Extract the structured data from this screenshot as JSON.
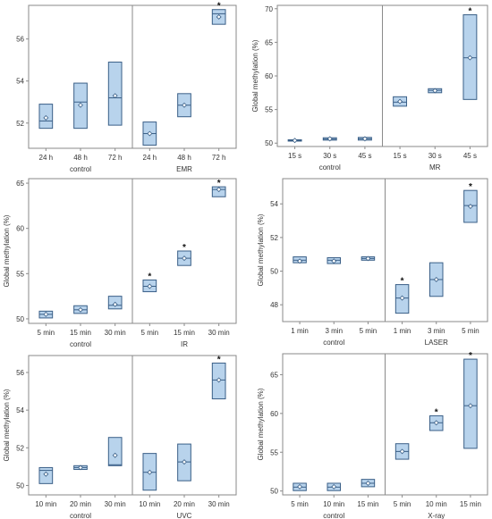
{
  "figure": {
    "background": "#ffffff",
    "box_fill": "#b8d3ec",
    "box_stroke": "#3a5f87",
    "frame_stroke": "#8a8a8a"
  },
  "chart_data": [
    {
      "type": "box",
      "ylabel": "",
      "ylim": [
        50.8,
        57.6
      ],
      "yticks": [
        52,
        54,
        56
      ],
      "categories": [
        "24 h",
        "48 h",
        "72 h",
        "24 h",
        "48 h",
        "72 h"
      ],
      "groups": [
        {
          "label": "control",
          "count": 3
        },
        {
          "label": "EMR",
          "count": 3
        }
      ],
      "boxes": [
        {
          "q1": 51.75,
          "median": 52.1,
          "q3": 52.9,
          "mean": 52.25,
          "sig": false
        },
        {
          "q1": 51.75,
          "median": 53.0,
          "q3": 53.9,
          "mean": 52.85,
          "sig": false
        },
        {
          "q1": 51.9,
          "median": 53.2,
          "q3": 54.9,
          "mean": 53.3,
          "sig": false
        },
        {
          "q1": 50.95,
          "median": 51.5,
          "q3": 52.05,
          "mean": 51.5,
          "sig": false
        },
        {
          "q1": 52.3,
          "median": 52.85,
          "q3": 53.4,
          "mean": 52.85,
          "sig": false
        },
        {
          "q1": 56.7,
          "median": 57.2,
          "q3": 57.4,
          "mean": 57.05,
          "sig": true
        }
      ]
    },
    {
      "type": "box",
      "ylabel": "Global methylation (%)",
      "ylim": [
        49.5,
        70.5
      ],
      "yticks": [
        50,
        55,
        60,
        65,
        70
      ],
      "categories": [
        "15 s",
        "30 s",
        "45 s",
        "15 s",
        "30 s",
        "45 s"
      ],
      "groups": [
        {
          "label": "control",
          "count": 3
        },
        {
          "label": "MR",
          "count": 3
        }
      ],
      "boxes": [
        {
          "q1": 50.3,
          "median": 50.4,
          "q3": 50.5,
          "mean": 50.4,
          "sig": false
        },
        {
          "q1": 50.45,
          "median": 50.6,
          "q3": 50.8,
          "mean": 50.65,
          "sig": false
        },
        {
          "q1": 50.45,
          "median": 50.65,
          "q3": 50.85,
          "mean": 50.65,
          "sig": false
        },
        {
          "q1": 55.5,
          "median": 56.1,
          "q3": 56.9,
          "mean": 56.2,
          "sig": false
        },
        {
          "q1": 57.5,
          "median": 57.85,
          "q3": 58.1,
          "mean": 57.8,
          "sig": false
        },
        {
          "q1": 56.5,
          "median": 62.7,
          "q3": 69.1,
          "mean": 62.7,
          "sig": true
        }
      ]
    },
    {
      "type": "box",
      "ylabel": "Global methylation (%)",
      "ylim": [
        49.5,
        65.5
      ],
      "yticks": [
        50,
        55,
        60,
        65
      ],
      "categories": [
        "5 min",
        "15 min",
        "30 min",
        "5 min",
        "15 min",
        "30 min"
      ],
      "groups": [
        {
          "label": "control",
          "count": 3
        },
        {
          "label": "IR",
          "count": 3
        }
      ],
      "boxes": [
        {
          "q1": 50.1,
          "median": 50.5,
          "q3": 50.85,
          "mean": 50.5,
          "sig": false
        },
        {
          "q1": 50.6,
          "median": 51.0,
          "q3": 51.45,
          "mean": 51.0,
          "sig": false
        },
        {
          "q1": 51.1,
          "median": 51.5,
          "q3": 52.5,
          "mean": 51.6,
          "sig": false
        },
        {
          "q1": 53.0,
          "median": 53.6,
          "q3": 54.3,
          "mean": 53.6,
          "sig": true
        },
        {
          "q1": 55.9,
          "median": 56.7,
          "q3": 57.5,
          "mean": 56.7,
          "sig": true
        },
        {
          "q1": 63.5,
          "median": 64.3,
          "q3": 64.6,
          "mean": 64.3,
          "sig": true
        }
      ]
    },
    {
      "type": "box",
      "ylabel": "Global methylation (%)",
      "ylim": [
        47.0,
        55.5
      ],
      "yticks": [
        48,
        50,
        52,
        54
      ],
      "categories": [
        "1 min",
        "3 min",
        "5 min",
        "1 min",
        "3 min",
        "5 min"
      ],
      "groups": [
        {
          "label": "control",
          "count": 3
        },
        {
          "label": "LASER",
          "count": 3
        }
      ],
      "boxes": [
        {
          "q1": 50.5,
          "median": 50.65,
          "q3": 50.85,
          "mean": 50.6,
          "sig": false
        },
        {
          "q1": 50.45,
          "median": 50.65,
          "q3": 50.8,
          "mean": 50.6,
          "sig": false
        },
        {
          "q1": 50.65,
          "median": 50.75,
          "q3": 50.85,
          "mean": 50.75,
          "sig": false
        },
        {
          "q1": 47.5,
          "median": 48.4,
          "q3": 49.2,
          "mean": 48.4,
          "sig": true
        },
        {
          "q1": 48.5,
          "median": 49.5,
          "q3": 50.5,
          "mean": 49.5,
          "sig": false
        },
        {
          "q1": 52.9,
          "median": 53.9,
          "q3": 54.8,
          "mean": 53.85,
          "sig": true
        }
      ]
    },
    {
      "type": "box",
      "ylabel": "Global methylation (%)",
      "ylim": [
        49.5,
        56.9
      ],
      "yticks": [
        50,
        52,
        54,
        56
      ],
      "categories": [
        "10 min",
        "20 min",
        "30 min",
        "10 min",
        "20 min",
        "30 min"
      ],
      "groups": [
        {
          "label": "control",
          "count": 3
        },
        {
          "label": "UVC",
          "count": 3
        }
      ],
      "boxes": [
        {
          "q1": 50.1,
          "median": 50.8,
          "q3": 50.95,
          "mean": 50.6,
          "sig": false
        },
        {
          "q1": 50.85,
          "median": 50.95,
          "q3": 51.05,
          "mean": 50.95,
          "sig": false
        },
        {
          "q1": 51.05,
          "median": 51.1,
          "q3": 52.55,
          "mean": 51.6,
          "sig": false
        },
        {
          "q1": 49.75,
          "median": 50.7,
          "q3": 51.7,
          "mean": 50.7,
          "sig": false
        },
        {
          "q1": 50.25,
          "median": 51.25,
          "q3": 52.2,
          "mean": 51.25,
          "sig": false
        },
        {
          "q1": 54.6,
          "median": 55.6,
          "q3": 56.5,
          "mean": 55.6,
          "sig": true
        }
      ]
    },
    {
      "type": "box",
      "ylabel": "Global methylation (%)",
      "ylim": [
        49.5,
        67.7
      ],
      "yticks": [
        50,
        55,
        60,
        65
      ],
      "categories": [
        "5 min",
        "10 min",
        "15 min",
        "5 min",
        "10 min",
        "15 min"
      ],
      "groups": [
        {
          "label": "control",
          "count": 3
        },
        {
          "label": "X-ray",
          "count": 3
        }
      ],
      "boxes": [
        {
          "q1": 50.05,
          "median": 50.5,
          "q3": 51.0,
          "mean": 50.55,
          "sig": false
        },
        {
          "q1": 50.05,
          "median": 50.5,
          "q3": 51.0,
          "mean": 50.55,
          "sig": false
        },
        {
          "q1": 50.55,
          "median": 51.0,
          "q3": 51.5,
          "mean": 51.0,
          "sig": false
        },
        {
          "q1": 54.1,
          "median": 55.1,
          "q3": 56.1,
          "mean": 55.1,
          "sig": false
        },
        {
          "q1": 57.8,
          "median": 58.8,
          "q3": 59.7,
          "mean": 58.8,
          "sig": true
        },
        {
          "q1": 55.5,
          "median": 61.0,
          "q3": 67.0,
          "mean": 61.0,
          "sig": true
        }
      ]
    }
  ]
}
